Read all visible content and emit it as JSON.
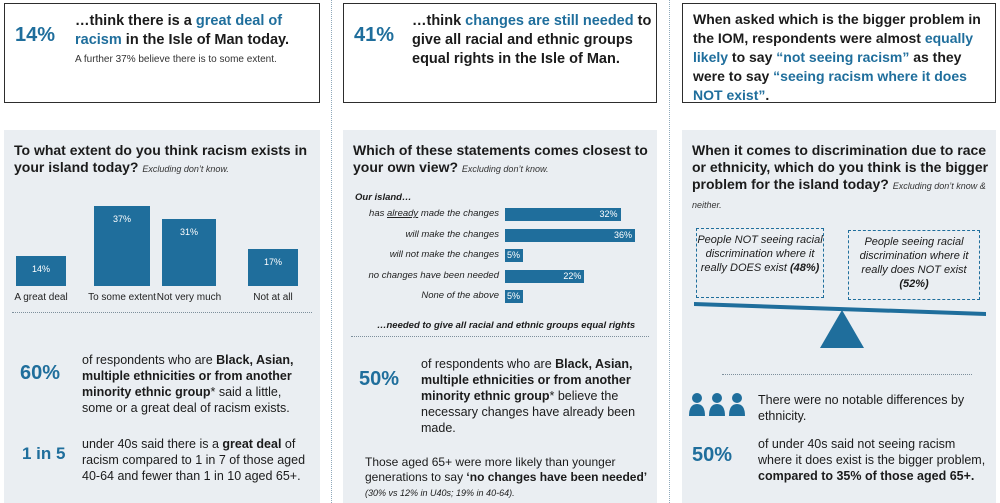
{
  "cards": {
    "c1": {
      "pct": "14%",
      "pre": "…think there is a ",
      "hl": "great deal of racism",
      "post": " in the Isle of Man today.",
      "sub": "A further 37% believe there is to some extent."
    },
    "c2": {
      "pct": "41%",
      "pre": "…think ",
      "hl": "changes are still needed",
      "post": " to give all racial and ethnic groups equal rights in the Isle of Man."
    },
    "c3": {
      "pre": "When asked which is the bigger problem in the IOM, respondents were almost ",
      "hl1": "equally likely",
      "mid": " to say ",
      "hl2": "“not seeing racism”",
      "mid2": " as they were to say ",
      "hl3": "“seeing racism where it does NOT exist”",
      "post": "."
    }
  },
  "panel1": {
    "title": "To what extent do you think racism exists in your island today?",
    "note": "Excluding don’t know.",
    "stat1_pct": "60%",
    "stat1_pre": "of respondents who are ",
    "stat1_hl": "Black, Asian, multiple ethnicities or from another minority ethnic group",
    "stat1_post": "* said a little, some or a great deal of racism exists.",
    "stat2_pct": "1 in 5",
    "stat2_pre": "under 40s said there is a ",
    "stat2_hl": "great deal",
    "stat2_mid": " of racism compared to 1 in 7 of those aged 40-64 and fewer than 1 in 10 aged 65+."
  },
  "panel2": {
    "title": "Which of these statements comes closest to your own view?",
    "note": "Excluding don’t know.",
    "lead": "Our island…",
    "trail": "…needed to give all racial and ethnic groups equal rights",
    "stat_pct": "50%",
    "stat_pre": "of respondents who are ",
    "stat_hl": "Black, Asian, multiple ethnicities or from another minority ethnic group",
    "stat_post": "* believe the necessary changes have already been made.",
    "foot_pre": "Those aged 65+ were more likely than younger generations to say ",
    "foot_hl": "‘no changes have been needed’",
    "foot_note": "(30% vs 12% in U40s; 19% in 40-64)."
  },
  "panel3": {
    "title": "When it comes to discrimination due to race or ethnicity, which do you think is the bigger problem for the island today?",
    "note": "Excluding don’t know & neither.",
    "left_box": "People NOT seeing racial discrimination where it really DOES exist",
    "left_pct": "(48%)",
    "right_box": "People seeing racial discrimination where it really does NOT exist",
    "right_pct": "(52%)",
    "no_diff": "There were no notable differences by ethnicity.",
    "stat_pct": "50%",
    "stat_pre": "of under 40s said not seeing racism where it does exist is the bigger problem, ",
    "stat_hl": "compared to 35% of those aged 65+."
  },
  "chart_data": [
    {
      "type": "bar",
      "categories": [
        "A great deal",
        "To some extent",
        "Not very much",
        "Not at all"
      ],
      "values": [
        14,
        37,
        31,
        17
      ],
      "value_labels": [
        "14%",
        "37%",
        "31%",
        "17%"
      ],
      "ylim": [
        0,
        40
      ],
      "color": "#1f6e9c"
    },
    {
      "type": "bar",
      "orientation": "horizontal",
      "categories": [
        "has already made the changes",
        "will make the changes",
        "will not make the changes",
        "no changes have been needed",
        "None of the above"
      ],
      "values": [
        32,
        36,
        5,
        22,
        5
      ],
      "value_labels": [
        "32%",
        "36%",
        "5%",
        "22%",
        "5%"
      ],
      "xlim": [
        0,
        36
      ],
      "color": "#1f6e9c"
    }
  ]
}
